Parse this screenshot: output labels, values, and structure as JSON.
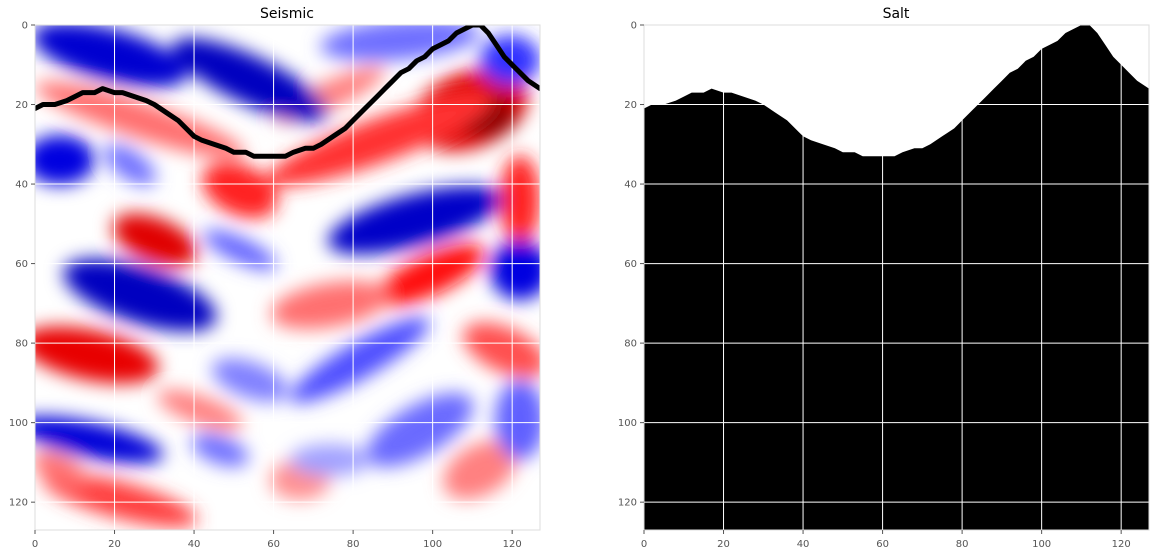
{
  "chart_data": [
    {
      "type": "heatmap",
      "title": "Seismic",
      "colormap": "seismic",
      "colors": {
        "low": "#0000cc",
        "mid": "#ffffff",
        "high": "#cc0000"
      },
      "xlim": [
        0,
        127
      ],
      "ylim": [
        127,
        0
      ],
      "x_ticks": [
        "0",
        "20",
        "40",
        "60",
        "80",
        "100",
        "120"
      ],
      "y_ticks": [
        "0",
        "20",
        "40",
        "60",
        "80",
        "100",
        "120"
      ],
      "grid": true,
      "salt_boundary": {
        "color": "#000000",
        "x": [
          0,
          2,
          5,
          8,
          10,
          12,
          15,
          17,
          20,
          22,
          25,
          28,
          30,
          33,
          36,
          38,
          40,
          42,
          45,
          48,
          50,
          53,
          55,
          58,
          60,
          63,
          65,
          68,
          70,
          72,
          75,
          78,
          80,
          83,
          86,
          88,
          90,
          92,
          94,
          96,
          98,
          100,
          102,
          104,
          106,
          108,
          110,
          112,
          114,
          116,
          118,
          120,
          122,
          124,
          127
        ],
        "y": [
          21,
          20,
          20,
          19,
          18,
          17,
          17,
          16,
          17,
          17,
          18,
          19,
          20,
          22,
          24,
          26,
          28,
          29,
          30,
          31,
          32,
          32,
          33,
          33,
          33,
          33,
          32,
          31,
          31,
          30,
          28,
          26,
          24,
          21,
          18,
          16,
          14,
          12,
          11,
          9,
          8,
          6,
          5,
          4,
          2,
          1,
          0,
          0,
          2,
          5,
          8,
          10,
          12,
          14,
          16
        ]
      }
    },
    {
      "type": "heatmap",
      "title": "Salt",
      "colormap": "gray",
      "colors": {
        "salt": "#000000",
        "sediment": "#ffffff"
      },
      "xlim": [
        0,
        127
      ],
      "ylim": [
        127,
        0
      ],
      "x_ticks": [
        "0",
        "20",
        "40",
        "60",
        "80",
        "100",
        "120"
      ],
      "y_ticks": [
        "0",
        "20",
        "40",
        "60",
        "80",
        "100",
        "120"
      ],
      "grid": true,
      "salt_top_depth": {
        "x": [
          0,
          2,
          5,
          8,
          10,
          12,
          15,
          17,
          20,
          22,
          25,
          28,
          30,
          33,
          36,
          38,
          40,
          42,
          45,
          48,
          50,
          53,
          55,
          58,
          60,
          63,
          65,
          68,
          70,
          72,
          75,
          78,
          80,
          83,
          86,
          88,
          90,
          92,
          94,
          96,
          98,
          100,
          102,
          104,
          106,
          108,
          110,
          112,
          114,
          116,
          118,
          120,
          122,
          124,
          127
        ],
        "y": [
          21,
          20,
          20,
          19,
          18,
          17,
          17,
          16,
          17,
          17,
          18,
          19,
          20,
          22,
          24,
          26,
          28,
          29,
          30,
          31,
          32,
          32,
          33,
          33,
          33,
          33,
          32,
          31,
          31,
          30,
          28,
          26,
          24,
          21,
          18,
          16,
          14,
          12,
          11,
          9,
          8,
          6,
          5,
          4,
          2,
          1,
          0,
          0,
          2,
          5,
          8,
          10,
          12,
          14,
          16
        ]
      }
    }
  ]
}
